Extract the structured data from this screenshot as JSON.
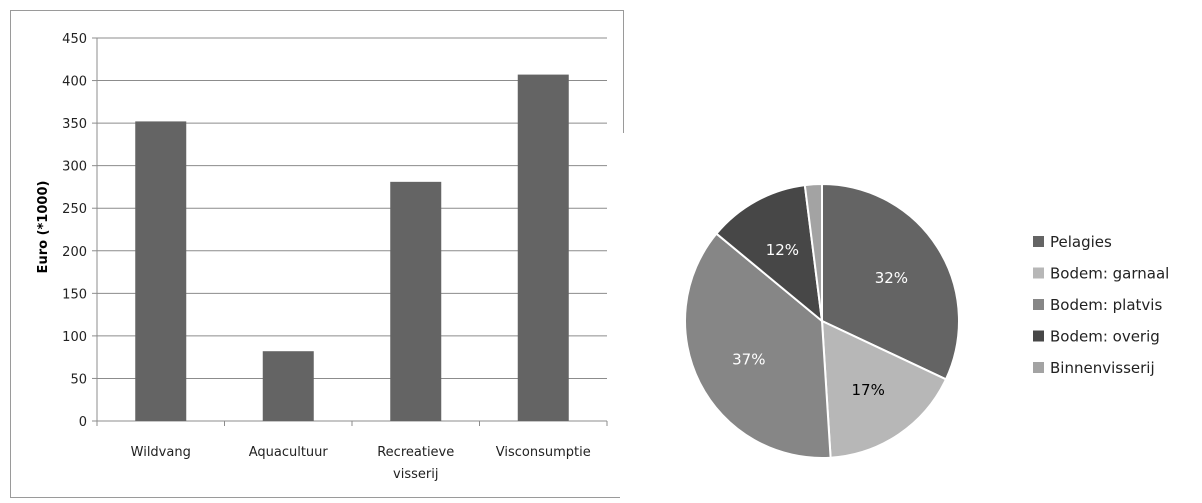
{
  "chart_data": [
    {
      "type": "bar",
      "categories": [
        "Wildvang",
        "Aquacultuur",
        "Recreatieve visserij",
        "Visconsumptie"
      ],
      "category_lines": [
        [
          "Wildvang"
        ],
        [
          "Aquacultuur"
        ],
        [
          "Recreatieve",
          "visserij"
        ],
        [
          "Visconsumptie"
        ]
      ],
      "values": [
        352,
        82,
        281,
        407
      ],
      "ylabel": "Euro (*1000)",
      "ylim": [
        0,
        450
      ],
      "yticks": [
        0,
        50,
        100,
        150,
        200,
        250,
        300,
        350,
        400,
        450
      ],
      "grid": true,
      "bar_color": "#646464"
    },
    {
      "type": "pie",
      "labels": [
        "Pelagies",
        "Bodem: garnaal",
        "Bodem: platvis",
        "Bodem: overig",
        "Binnenvisserij"
      ],
      "values": [
        32,
        17,
        37,
        12,
        2
      ],
      "data_labels": [
        "32%",
        "17%",
        "37%",
        "12%",
        ""
      ],
      "colors": [
        "#646464",
        "#b7b7b7",
        "#868686",
        "#474747",
        "#a3a3a3"
      ],
      "legend_position": "right"
    }
  ]
}
